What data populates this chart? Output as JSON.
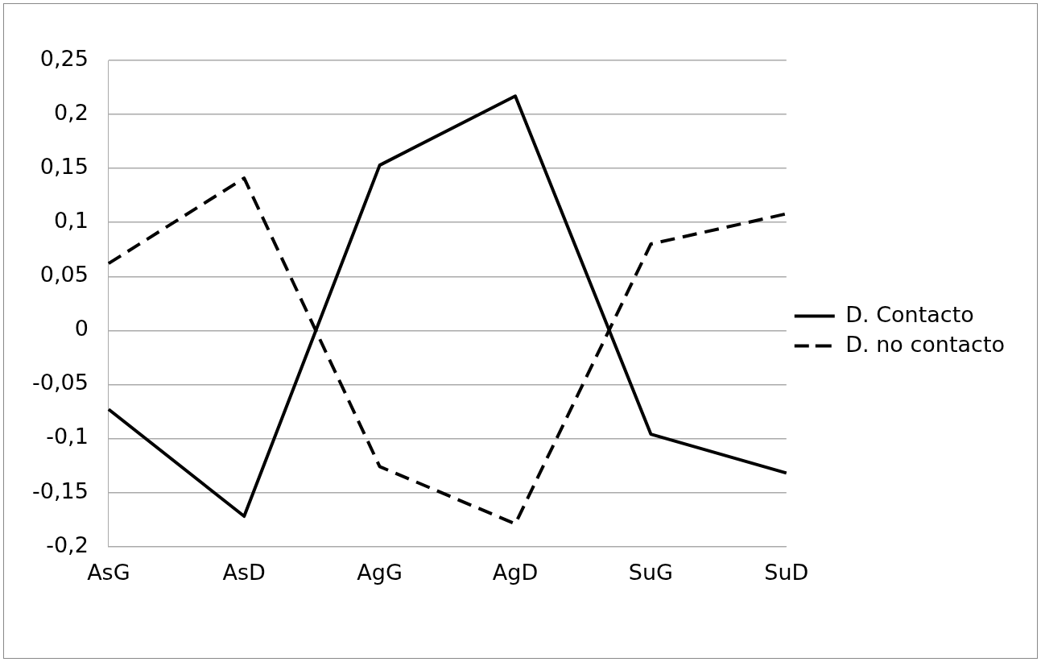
{
  "chart_data": {
    "type": "line",
    "categories": [
      "AsG",
      "AsD",
      "AgG",
      "AgD",
      "SuG",
      "SuD"
    ],
    "series": [
      {
        "name": "D. Contacto",
        "color": "#000000",
        "line_style": "solid",
        "values": [
          -0.073,
          -0.172,
          0.153,
          0.217,
          -0.096,
          -0.132
        ]
      },
      {
        "name": "D. no contacto",
        "color": "#000000",
        "line_style": "dashed",
        "values": [
          0.062,
          0.141,
          -0.126,
          -0.179,
          0.08,
          0.108
        ]
      }
    ],
    "ylim": [
      -0.2,
      0.25
    ],
    "yticks": [
      {
        "value": -0.2,
        "label": "-0,2"
      },
      {
        "value": -0.15,
        "label": "-0,15"
      },
      {
        "value": -0.1,
        "label": "-0,1"
      },
      {
        "value": -0.05,
        "label": "-0,05"
      },
      0,
      {
        "value": 0.05,
        "label": "0,05"
      },
      {
        "value": 0.1,
        "label": "0,1"
      },
      {
        "value": 0.15,
        "label": "0,15"
      },
      {
        "value": 0.2,
        "label": "0,2"
      },
      {
        "value": 0.25,
        "label": "0,25"
      }
    ],
    "grid": "y",
    "legend": "right",
    "marker": "none"
  }
}
